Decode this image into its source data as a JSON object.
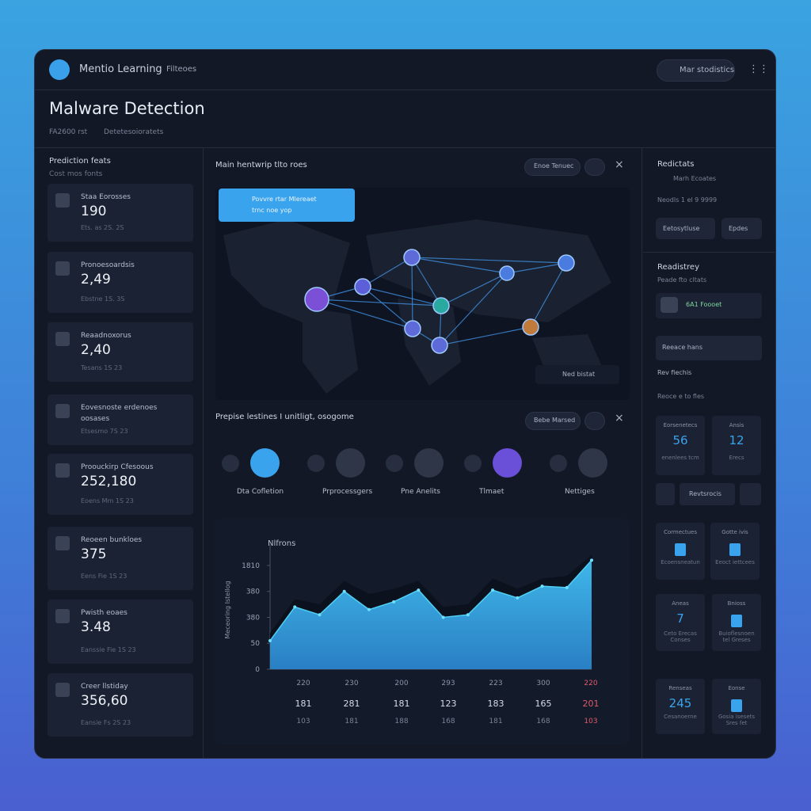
{
  "header": {
    "app_name": "Mentio Learning",
    "breadcrumb": "Filteoes",
    "search": "Mar stodistics"
  },
  "page": {
    "title": "Malware Detection",
    "meta": [
      "FA2600 rst",
      "Detetesoioratets"
    ]
  },
  "left_panel": {
    "title": "Prediction feats",
    "subtitle": "Cost mos fonts",
    "cards": [
      {
        "label": "Staa Eorosses",
        "value": "190",
        "sub": "Ets. as 2S. 2S"
      },
      {
        "label": "Pronoesoardsis",
        "value": "2,49",
        "sub": "Ebstne 1S. 3S"
      },
      {
        "label": "Reaadnoxorus",
        "value": "2,40",
        "sub": "Tesans 1S 23"
      },
      {
        "label": "Eovesnoste erdenoes oosases",
        "sub": "Etsesmo 7S 23"
      },
      {
        "label": "Proouckirp Cfesoous",
        "value": "252,180",
        "sub": "Eoens Mm 1S 23"
      },
      {
        "label": "Reoeen bunkloes",
        "value": "375",
        "sub": "Eens Fie 1S 23"
      },
      {
        "label": "Pwisth eoaes",
        "value": "3.48",
        "sub": "Eanssie Fie 1S 23"
      },
      {
        "label": "Creer llstiday",
        "value": "356,60",
        "sub": "Eansie Fs 2S 23"
      }
    ]
  },
  "map": {
    "title": "Main hentwrip tlto roes",
    "button": "Enoe Tenuec",
    "tooltip": [
      "Povvre rtar Mlereaet",
      "trnc noe yop"
    ],
    "legend": "Ned bistat"
  },
  "pipeline": {
    "title": "Prepise lestines I unitligt, osogome",
    "button": "Bebe Marsed",
    "steps": [
      "Dta Cofletion",
      "Prprocessgers",
      "Pne Anelits",
      "Tlmaet",
      "Nettiges"
    ]
  },
  "chart": {
    "type": "area",
    "title": "Nlfrons",
    "y_label": "Meceoring Istellog",
    "ylim": [
      0,
      4.5
    ],
    "yticks": [
      0,
      {
        "value": 1,
        "label": "50"
      },
      {
        "value": 2,
        "label": "380"
      },
      {
        "value": 3,
        "label": "380"
      },
      {
        "value": 4,
        "label": "1810"
      }
    ],
    "series": [
      {
        "color": "#0b111d",
        "values": [
          1.4,
          2.7,
          2.5,
          3.4,
          2.9,
          3.1,
          3.4,
          2.4,
          2.5,
          3.5,
          3.1,
          3.5,
          3.6,
          4.4
        ]
      },
      {
        "color": "#3fb6e8",
        "values": [
          1.1,
          2.4,
          2.1,
          3.0,
          2.3,
          2.6,
          3.05,
          2.0,
          2.1,
          3.05,
          2.75,
          3.2,
          3.15,
          4.2
        ]
      }
    ],
    "x_labels": [
      "220",
      "230",
      "200",
      "293",
      "223",
      "300",
      "220"
    ],
    "rows": [
      [
        "181",
        "281",
        "181",
        "123",
        "183",
        "165",
        "201"
      ],
      [
        "103",
        "181",
        "188",
        "168",
        "181",
        "168",
        "103"
      ]
    ]
  },
  "right_panel": {
    "title": "Redictats",
    "item": "Marh Ecoates",
    "note": "Neodls 1 el 9 9999",
    "buttons": [
      "Eetosytluse",
      "Epdes"
    ],
    "section": "Readistrey",
    "section_sub": "Peade fto cltats",
    "badge": "6A1 Foooet",
    "select": "Reeace hans",
    "label1": "Rev fiechis",
    "label2": "Reoce e to fles",
    "tiles": [
      {
        "label": "Eorsenetecs",
        "value": "56",
        "sub": "enenlees tcm"
      },
      {
        "label": "Ansis",
        "value": "12",
        "sub": "Erecs"
      },
      {
        "label": "Cormectues",
        "sub": "Ecoensneatun"
      },
      {
        "label": "Gotte ivis",
        "sub": "Eeoct iettcees"
      },
      {
        "label": "Aneas",
        "value": "7",
        "sub": "Ceto Erecas Conses"
      },
      {
        "label": "Bnioss",
        "sub": "Buioflesnoen tel Greses"
      },
      {
        "label": "Renseas",
        "value": "245",
        "sub": "Cesanoerne"
      },
      {
        "label": "Eonse",
        "sub": "Gosia isesets Sres fet"
      }
    ],
    "pager": "Revtsrocis"
  }
}
